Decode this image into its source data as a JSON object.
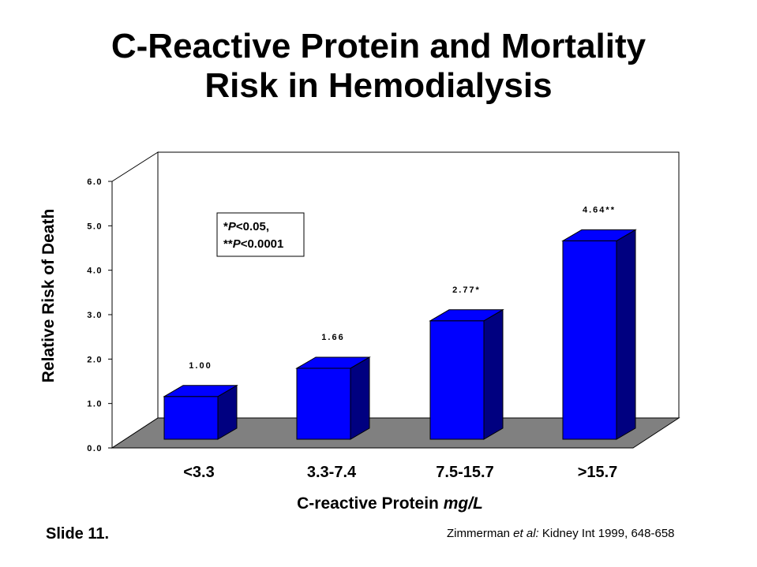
{
  "title_line1": "C-Reactive Protein and Mortality",
  "title_line2": "Risk in Hemodialysis",
  "chart_data": {
    "type": "bar",
    "categories": [
      "<3.3",
      "3.3-7.4",
      "7.5-15.7",
      ">15.7"
    ],
    "values": [
      1.0,
      1.66,
      2.77,
      4.64
    ],
    "data_labels": [
      "1.00",
      "1.66",
      "2.77*",
      "4.64**"
    ],
    "ylim": [
      0,
      6
    ],
    "yticks": [
      "0.0",
      "1.0",
      "2.0",
      "3.0",
      "4.0",
      "5.0",
      "6.0"
    ],
    "xlabel_main": "C-reactive Protein ",
    "xlabel_unit": "mg/L",
    "ylabel": "Relative Risk of Death",
    "annotation": {
      "line1_p": "P",
      "line1_rest": "<0.05,",
      "line2_p": "P",
      "line2_rest": "<0.0001"
    },
    "bar_color": "#0000ff",
    "bar_side_color": "#000080",
    "floor_color": "#808080"
  },
  "footer": {
    "slide": "Slide 11.",
    "cite_author": "Zimmerman ",
    "cite_etal": "et al:",
    "cite_rest": " Kidney Int 1999, 648-658"
  }
}
